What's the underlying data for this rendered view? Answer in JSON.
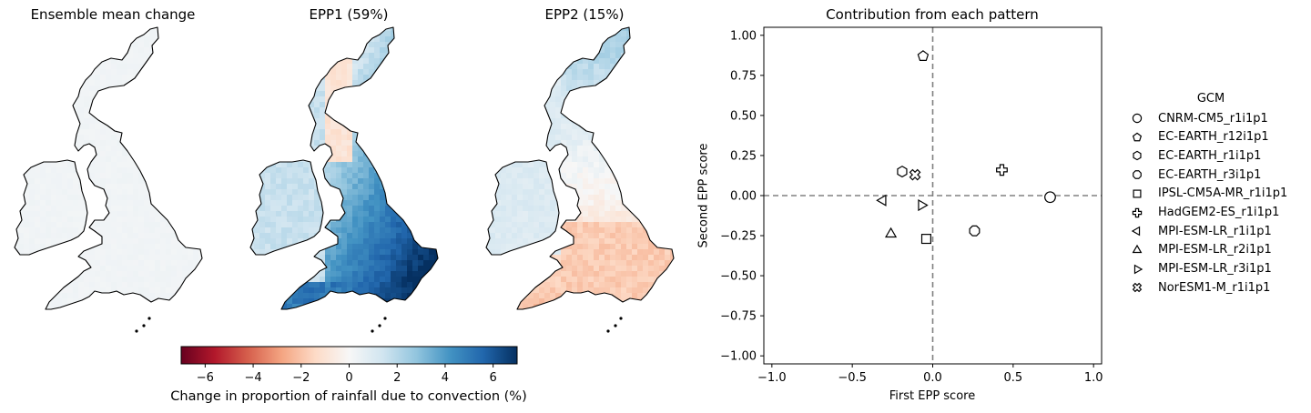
{
  "maps": [
    {
      "title": "Ensemble mean change"
    },
    {
      "title": "EPP1 (59%)"
    },
    {
      "title": "EPP2 (15%)"
    }
  ],
  "colorbar": {
    "label": "Change in proportion of rainfall due to convection (%)",
    "ticks": [
      "−6",
      "−4",
      "−2",
      "0",
      "2",
      "4",
      "6"
    ],
    "tick_values": [
      -6,
      -4,
      -2,
      0,
      2,
      4,
      6
    ],
    "range": [
      -7,
      7
    ],
    "colormap": [
      "#67001f",
      "#b2182b",
      "#d6604d",
      "#f4a582",
      "#fddbc7",
      "#f7f7f7",
      "#d1e5f0",
      "#92c5de",
      "#4393c3",
      "#2166ac",
      "#053061"
    ]
  },
  "chart_data": {
    "type": "scatter",
    "title": "Contribution from each pattern",
    "xlabel": "First EPP score",
    "ylabel": "Second EPP score",
    "xlim": [
      -1.05,
      1.05
    ],
    "ylim": [
      -1.05,
      1.05
    ],
    "xticks": [
      "−1.0",
      "−0.5",
      "0.0",
      "0.5",
      "1.0"
    ],
    "xtick_values": [
      -1.0,
      -0.5,
      0.0,
      0.5,
      1.0
    ],
    "yticks": [
      "−1.00",
      "−0.75",
      "−0.50",
      "−0.25",
      "0.00",
      "0.25",
      "0.50",
      "0.75",
      "1.00"
    ],
    "ytick_values": [
      -1.0,
      -0.75,
      -0.5,
      -0.25,
      0.0,
      0.25,
      0.5,
      0.75,
      1.0
    ],
    "reference_lines": {
      "x": 0,
      "y": 0,
      "style": "dashed",
      "color": "#808080"
    },
    "legend": {
      "title": "GCM",
      "placement": "right, outside"
    },
    "series": [
      {
        "name": "CNRM-CM5_r1i1p1",
        "marker": "circle",
        "x": 0.73,
        "y": -0.01
      },
      {
        "name": "EC-EARTH_r12i1p1",
        "marker": "pentagon",
        "x": -0.06,
        "y": 0.87
      },
      {
        "name": "EC-EARTH_r1i1p1",
        "marker": "hexagon",
        "x": -0.19,
        "y": 0.15
      },
      {
        "name": "EC-EARTH_r3i1p1",
        "marker": "octagon",
        "x": 0.26,
        "y": -0.22
      },
      {
        "name": "IPSL-CM5A-MR_r1i1p1",
        "marker": "square",
        "x": -0.04,
        "y": -0.27
      },
      {
        "name": "HadGEM2-ES_r1i1p1",
        "marker": "plus",
        "x": 0.43,
        "y": 0.16
      },
      {
        "name": "MPI-ESM-LR_r1i1p1",
        "marker": "triangle-left",
        "x": -0.31,
        "y": -0.03
      },
      {
        "name": "MPI-ESM-LR_r2i1p1",
        "marker": "triangle-up",
        "x": -0.26,
        "y": -0.24
      },
      {
        "name": "MPI-ESM-LR_r3i1p1",
        "marker": "triangle-right",
        "x": -0.07,
        "y": -0.06
      },
      {
        "name": "NorESM1-M_r1i1p1",
        "marker": "x-filled",
        "x": -0.11,
        "y": 0.13
      }
    ]
  }
}
